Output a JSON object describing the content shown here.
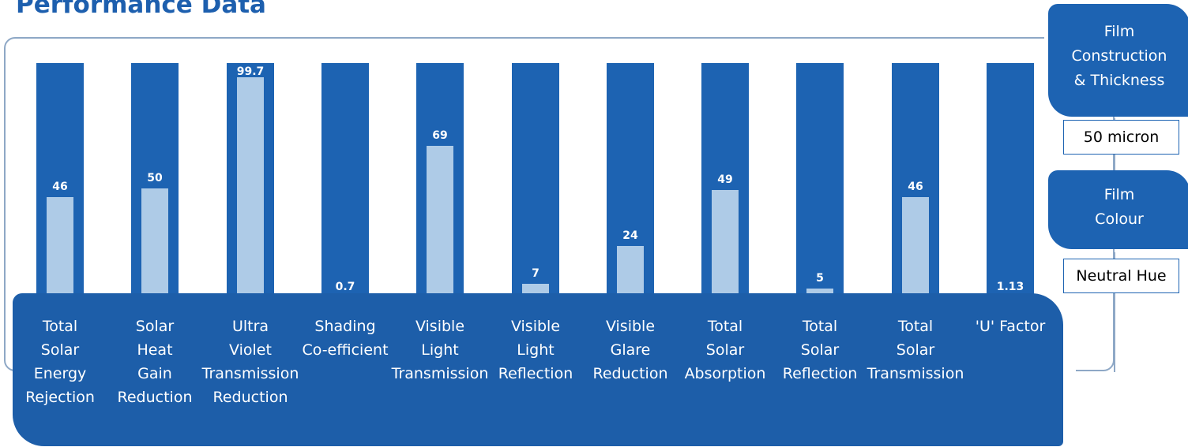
{
  "title": "Performance Data",
  "chart_data": {
    "type": "bar",
    "ylim": [
      0,
      100
    ],
    "categories": [
      [
        "Total",
        "Solar",
        "Energy",
        "Rejection"
      ],
      [
        "Solar",
        "Heat",
        "Gain",
        "Reduction"
      ],
      [
        "Ultra",
        "Violet",
        "Transmission",
        "Reduction"
      ],
      [
        "Shading",
        "Co-efficient"
      ],
      [
        "Visible",
        "Light",
        "Transmission"
      ],
      [
        "Visible",
        "Light",
        "Reflection"
      ],
      [
        "Visible",
        "Glare",
        "Reduction"
      ],
      [
        "Total",
        "Solar",
        "Absorption"
      ],
      [
        "Total",
        "Solar",
        "Reflection"
      ],
      [
        "Total",
        "Solar",
        "Transmission"
      ],
      [
        "'U' Factor"
      ]
    ],
    "values": [
      46,
      50,
      99.7,
      0.7,
      69,
      7,
      24,
      49,
      5,
      46,
      1.13
    ],
    "value_labels": [
      "46",
      "50",
      "99.7",
      "0.7",
      "69",
      "7",
      "24",
      "49",
      "5",
      "46",
      "1.13"
    ],
    "colors": {
      "track": "#1d63b2",
      "fill": "#aecbe7",
      "panel": "#1d5ea9"
    }
  },
  "film_construction": {
    "label_lines": [
      "Film",
      "Construction",
      "& Thickness"
    ],
    "value": "50 micron"
  },
  "film_colour": {
    "label_lines": [
      "Film",
      "Colour"
    ],
    "value": "Neutral Hue"
  }
}
